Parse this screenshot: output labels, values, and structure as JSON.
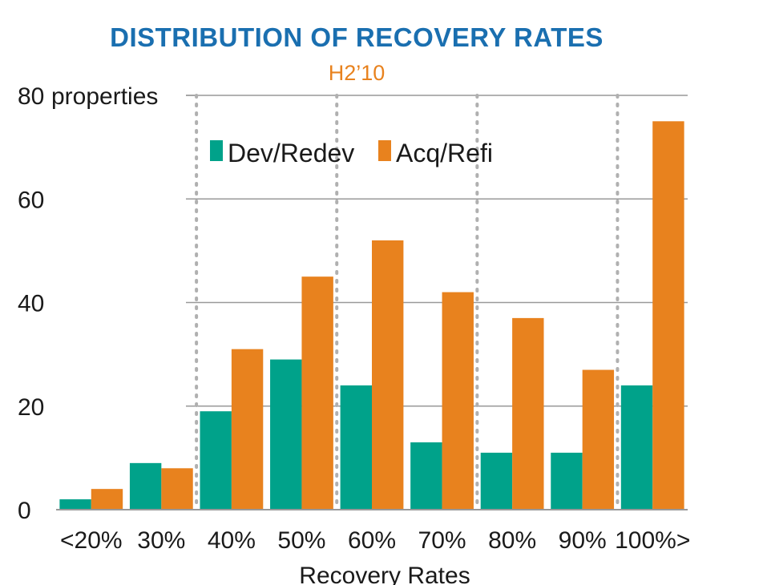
{
  "chart_data": {
    "type": "bar",
    "title": "DISTRIBUTION OF RECOVERY RATES",
    "subtitle": "H2’10",
    "xlabel": "Recovery Rates",
    "ylabel": "",
    "y_unit_label": "properties",
    "ylim": [
      0,
      80
    ],
    "yticks": [
      "0",
      "20",
      "40",
      "60",
      "80"
    ],
    "grid": "horizontal solid lines, vertical dotted separators",
    "legend_position": "top-center",
    "categories": [
      "<20%",
      "30%",
      "40%",
      "50%",
      "60%",
      "70%",
      "80%",
      "90%",
      "100%>"
    ],
    "series": [
      {
        "name": "Dev/Redev",
        "values": [
          2,
          9,
          19,
          29,
          24,
          13,
          11,
          11,
          24
        ]
      },
      {
        "name": "Acq/Refi",
        "values": [
          4,
          8,
          31,
          45,
          52,
          42,
          37,
          27,
          75
        ]
      }
    ]
  },
  "colors": {
    "title": "#1a6fb0",
    "subtitle": "#e8821e",
    "dev_redev": "#00a28a",
    "acq_refi": "#e8821e",
    "text": "#1a1a1a",
    "grid": "#999999",
    "dotted_separator": "#b0b0b0"
  }
}
